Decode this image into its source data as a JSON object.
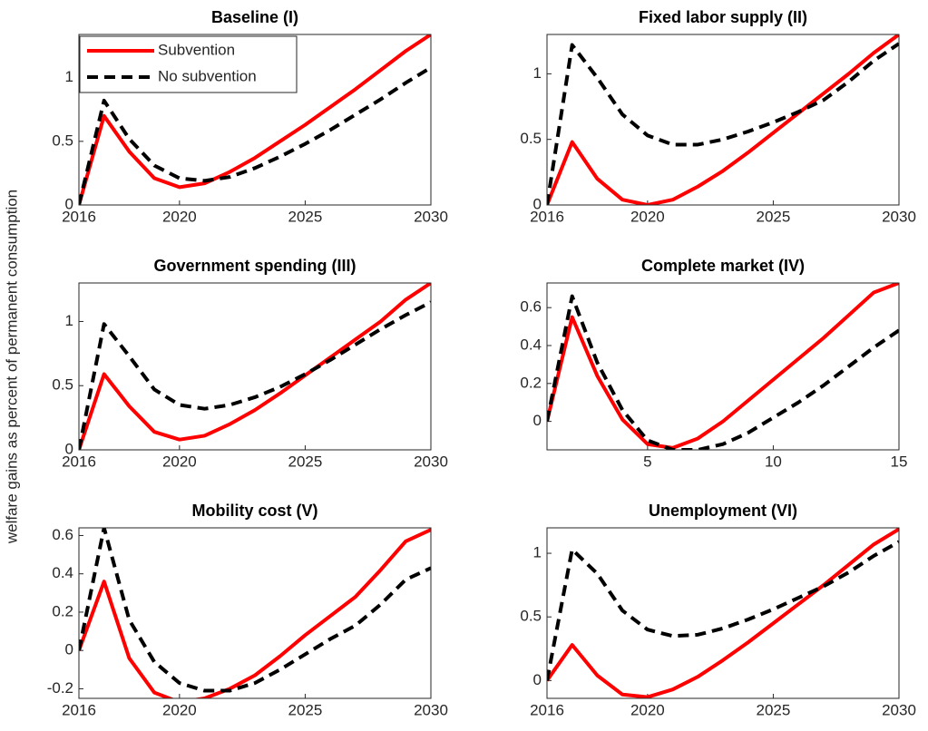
{
  "ylabel": "welfare gains as percent of permanent consumption",
  "chart_data": [
    {
      "type": "line",
      "title": "Baseline (I)",
      "x": [
        2016,
        2017,
        2018,
        2019,
        2020,
        2021,
        2022,
        2023,
        2024,
        2025,
        2026,
        2027,
        2028,
        2029,
        2030
      ],
      "xlim": [
        2016,
        2030
      ],
      "xticks": [
        2016,
        2020,
        2025,
        2030
      ],
      "ylim": [
        0,
        1.34
      ],
      "yticks": [
        0,
        0.5,
        1
      ],
      "legend": "upper left",
      "series": [
        {
          "name": "Subvention",
          "color": "#ff0000",
          "style": "solid",
          "values": [
            0,
            0.7,
            0.42,
            0.21,
            0.14,
            0.17,
            0.26,
            0.37,
            0.5,
            0.63,
            0.77,
            0.91,
            1.06,
            1.21,
            1.34
          ]
        },
        {
          "name": "No subvention",
          "color": "#000000",
          "style": "dashed",
          "values": [
            0,
            0.82,
            0.52,
            0.31,
            0.21,
            0.19,
            0.22,
            0.29,
            0.38,
            0.48,
            0.59,
            0.71,
            0.83,
            0.96,
            1.08
          ]
        }
      ]
    },
    {
      "type": "line",
      "title": "Fixed labor supply (II)",
      "x": [
        2016,
        2017,
        2018,
        2019,
        2020,
        2021,
        2022,
        2023,
        2024,
        2025,
        2026,
        2027,
        2028,
        2029,
        2030
      ],
      "xlim": [
        2016,
        2030
      ],
      "xticks": [
        2016,
        2020,
        2025,
        2030
      ],
      "ylim": [
        0,
        1.3
      ],
      "yticks": [
        0,
        0.5,
        1
      ],
      "series": [
        {
          "color": "#ff0000",
          "style": "solid",
          "values": [
            0,
            0.48,
            0.2,
            0.04,
            0,
            0.04,
            0.14,
            0.26,
            0.4,
            0.55,
            0.7,
            0.85,
            1.0,
            1.16,
            1.3
          ]
        },
        {
          "color": "#000000",
          "style": "dashed",
          "values": [
            0,
            1.22,
            0.97,
            0.69,
            0.53,
            0.46,
            0.46,
            0.5,
            0.56,
            0.63,
            0.71,
            0.8,
            0.94,
            1.1,
            1.23
          ]
        }
      ]
    },
    {
      "type": "line",
      "title": "Government spending (III)",
      "x": [
        2016,
        2017,
        2018,
        2019,
        2020,
        2021,
        2022,
        2023,
        2024,
        2025,
        2026,
        2027,
        2028,
        2029,
        2030
      ],
      "xlim": [
        2016,
        2030
      ],
      "xticks": [
        2016,
        2020,
        2025,
        2030
      ],
      "ylim": [
        0,
        1.3
      ],
      "yticks": [
        0,
        0.5,
        1
      ],
      "series": [
        {
          "color": "#ff0000",
          "style": "solid",
          "values": [
            0,
            0.59,
            0.34,
            0.14,
            0.08,
            0.11,
            0.2,
            0.31,
            0.44,
            0.58,
            0.72,
            0.86,
            1.0,
            1.17,
            1.3
          ]
        },
        {
          "color": "#000000",
          "style": "dashed",
          "values": [
            0,
            0.98,
            0.73,
            0.47,
            0.35,
            0.32,
            0.35,
            0.41,
            0.49,
            0.59,
            0.7,
            0.82,
            0.94,
            1.05,
            1.15
          ]
        }
      ]
    },
    {
      "type": "line",
      "title": "Complete market (IV)",
      "x": [
        1,
        2,
        3,
        4,
        5,
        6,
        7,
        8,
        9,
        10,
        11,
        12,
        13,
        14,
        15
      ],
      "xlim": [
        1,
        15
      ],
      "xticks": [
        5,
        10,
        15
      ],
      "ylim": [
        -0.15,
        0.73
      ],
      "yticks": [
        0,
        0.2,
        0.4,
        0.6
      ],
      "series": [
        {
          "color": "#ff0000",
          "style": "solid",
          "values": [
            0,
            0.55,
            0.24,
            0.01,
            -0.12,
            -0.14,
            -0.09,
            0,
            0.11,
            0.22,
            0.33,
            0.44,
            0.56,
            0.68,
            0.73
          ]
        },
        {
          "color": "#000000",
          "style": "dashed",
          "values": [
            0,
            0.66,
            0.31,
            0.06,
            -0.1,
            -0.15,
            -0.15,
            -0.12,
            -0.06,
            0.02,
            0.1,
            0.19,
            0.29,
            0.39,
            0.48
          ]
        }
      ]
    },
    {
      "type": "line",
      "title": "Mobility cost (V)",
      "x": [
        2016,
        2017,
        2018,
        2019,
        2020,
        2021,
        2022,
        2023,
        2024,
        2025,
        2026,
        2027,
        2028,
        2029,
        2030
      ],
      "xlim": [
        2016,
        2030
      ],
      "xticks": [
        2016,
        2020,
        2025,
        2030
      ],
      "ylim": [
        -0.25,
        0.64
      ],
      "yticks": [
        -0.2,
        0,
        0.2,
        0.4,
        0.6
      ],
      "series": [
        {
          "color": "#ff0000",
          "style": "solid",
          "values": [
            0,
            0.36,
            -0.04,
            -0.22,
            -0.27,
            -0.25,
            -0.2,
            -0.13,
            -0.03,
            0.08,
            0.18,
            0.28,
            0.42,
            0.57,
            0.63
          ]
        },
        {
          "color": "#000000",
          "style": "dashed",
          "values": [
            0,
            0.64,
            0.16,
            -0.06,
            -0.17,
            -0.21,
            -0.21,
            -0.17,
            -0.1,
            -0.02,
            0.06,
            0.13,
            0.24,
            0.37,
            0.43
          ]
        }
      ]
    },
    {
      "type": "line",
      "title": "Unemployment (VI)",
      "x": [
        2016,
        2017,
        2018,
        2019,
        2020,
        2021,
        2022,
        2023,
        2024,
        2025,
        2026,
        2027,
        2028,
        2029,
        2030
      ],
      "xlim": [
        2016,
        2030
      ],
      "xticks": [
        2016,
        2020,
        2025,
        2030
      ],
      "ylim": [
        -0.14,
        1.2
      ],
      "yticks": [
        0,
        0.5,
        1
      ],
      "series": [
        {
          "color": "#ff0000",
          "style": "solid",
          "values": [
            0,
            0.28,
            0.04,
            -0.11,
            -0.13,
            -0.07,
            0.03,
            0.16,
            0.3,
            0.45,
            0.6,
            0.75,
            0.91,
            1.07,
            1.19
          ]
        },
        {
          "color": "#000000",
          "style": "dashed",
          "values": [
            0,
            1.03,
            0.84,
            0.55,
            0.4,
            0.35,
            0.36,
            0.41,
            0.48,
            0.56,
            0.65,
            0.74,
            0.85,
            0.98,
            1.09
          ]
        }
      ]
    }
  ]
}
